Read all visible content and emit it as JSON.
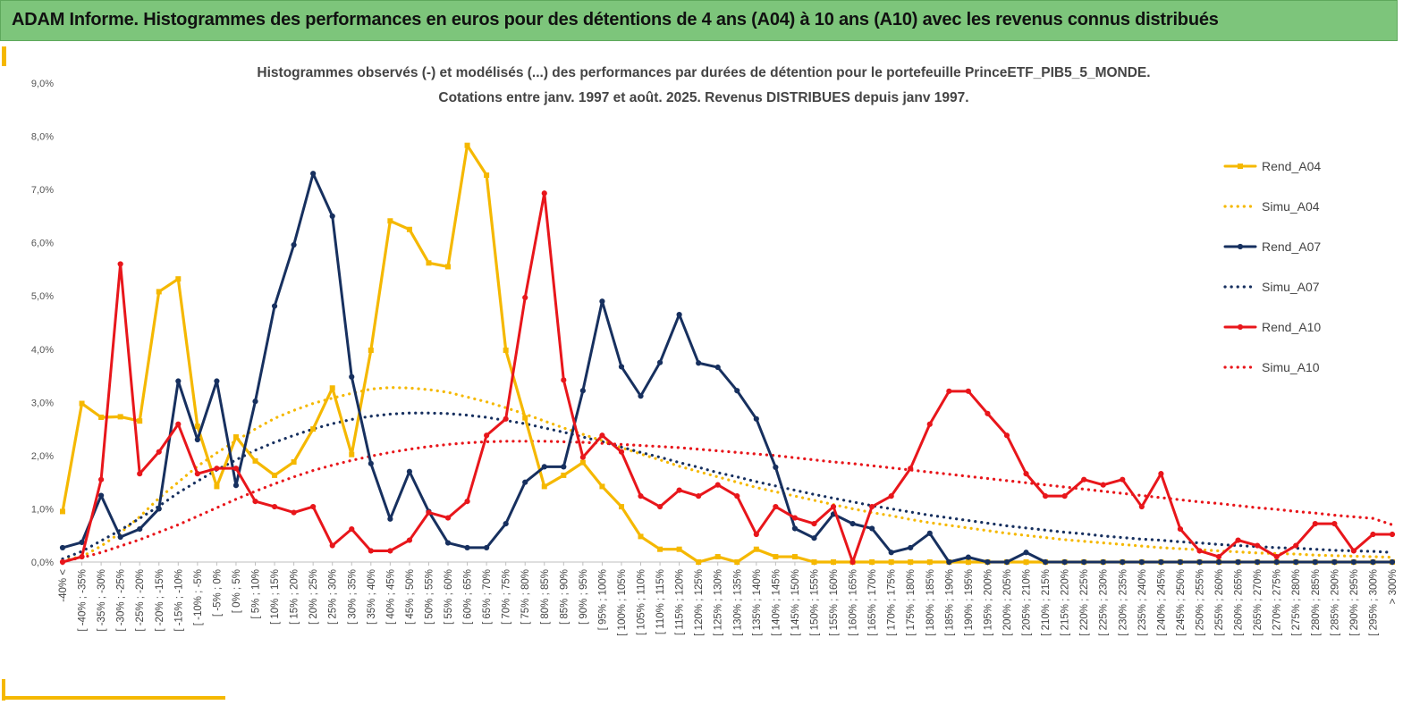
{
  "header": {
    "title": "ADAM Informe. Histogrammes des performances en euros pour des détentions de 4 ans (A04) à 10 ans (A10) avec les revenus connus distribués"
  },
  "colors": {
    "banner": "#7dc57b",
    "accent": "#f5b800",
    "a04": "#f5b800",
    "a07": "#17305f",
    "a10": "#e8161b"
  },
  "chart_data": {
    "type": "line",
    "title_line1": "Histogrammes observés (-) et modélisés (...) des performances par durées de détention pour le portefeuille PrinceETF_PIB5_5_MONDE.",
    "title_line2": "Cotations entre janv. 1997 et août. 2025. Revenus DISTRIBUES depuis janv 1997.",
    "ylim": [
      0,
      9
    ],
    "yticks": [
      "0,0%",
      "1,0%",
      "2,0%",
      "3,0%",
      "4,0%",
      "5,0%",
      "6,0%",
      "7,0%",
      "8,0%",
      "9,0%"
    ],
    "grid": false,
    "legend_position": "right",
    "categories": [
      "-40% <",
      "[ -40% ; -35%",
      "[ -35% ; -30%",
      "[ -30% ; -25%",
      "[ -25% ; -20%",
      "[ -20% ; -15%",
      "[ -15% ; -10%",
      "[ -10% ; -5%",
      "[ -5% ; 0%",
      "[ 0% ; 5%",
      "[ 5% ; 10%",
      "[ 10% ; 15%",
      "[ 15% ; 20%",
      "[ 20% ; 25%",
      "[ 25% ; 30%",
      "[ 30% ; 35%",
      "[ 35% ; 40%",
      "[ 40% ; 45%",
      "[ 45% ; 50%",
      "[ 50% ; 55%",
      "[ 55% ; 60%",
      "[ 60% ; 65%",
      "[ 65% ; 70%",
      "[ 70% ; 75%",
      "[ 75% ; 80%",
      "[ 80% ; 85%",
      "[ 85% ; 90%",
      "[ 90% ; 95%",
      "[ 95% ; 100%",
      "[ 100% ; 105%",
      "[ 105% ; 110%",
      "[ 110% ; 115%",
      "[ 115% ; 120%",
      "[ 120% ; 125%",
      "[ 125% ; 130%",
      "[ 130% ; 135%",
      "[ 135% ; 140%",
      "[ 140% ; 145%",
      "[ 145% ; 150%",
      "[ 150% ; 155%",
      "[ 155% ; 160%",
      "[ 160% ; 165%",
      "[ 165% ; 170%",
      "[ 170% ; 175%",
      "[ 175% ; 180%",
      "[ 180% ; 185%",
      "[ 185% ; 190%",
      "[ 190% ; 195%",
      "[ 195% ; 200%",
      "[ 200% ; 205%",
      "[ 205% ; 210%",
      "[ 210% ; 215%",
      "[ 215% ; 220%",
      "[ 220% ; 225%",
      "[ 225% ; 230%",
      "[ 230% ; 235%",
      "[ 235% ; 240%",
      "[ 240% ; 245%",
      "[ 245% ; 250%",
      "[ 250% ; 255%",
      "[ 255% ; 260%",
      "[ 260% ; 265%",
      "[ 265% ; 270%",
      "[ 270% ; 275%",
      "[ 275% ; 280%",
      "[ 280% ; 285%",
      "[ 285% ; 290%",
      "[ 290% ; 295%",
      "[ 295% ; 300%",
      "> 300%"
    ],
    "series": [
      {
        "name": "Rend_A04",
        "style": "solid",
        "color": "#f5b800",
        "values": [
          0.95,
          2.98,
          2.72,
          2.73,
          2.65,
          5.08,
          5.32,
          2.55,
          1.42,
          2.35,
          1.9,
          1.63,
          1.88,
          2.5,
          3.27,
          2.02,
          3.98,
          6.41,
          6.25,
          5.62,
          5.55,
          7.83,
          7.27,
          3.98,
          2.71,
          1.42,
          1.63,
          1.87,
          1.42,
          1.04,
          0.48,
          0.24,
          0.24,
          0.0,
          0.1,
          0.0,
          0.24,
          0.1,
          0.1,
          0.0,
          0.0,
          0.0,
          0.0,
          0.0,
          0.0,
          0.0,
          0.0,
          0.0,
          0.0,
          0.0,
          0.0,
          0.0,
          0.0,
          0.0,
          0.0,
          0.0,
          0.0,
          0.0,
          0.0,
          0.0,
          0.0,
          0.0,
          0.0,
          0.0,
          0.0,
          0.0,
          0.0,
          0.0,
          0.0,
          0.0
        ]
      },
      {
        "name": "Simu_A04",
        "style": "dotted",
        "color": "#f5b800",
        "values": [
          0.04,
          0.1,
          0.3,
          0.55,
          0.85,
          1.2,
          1.5,
          1.8,
          2.05,
          2.28,
          2.5,
          2.7,
          2.85,
          2.98,
          3.08,
          3.17,
          3.25,
          3.28,
          3.27,
          3.24,
          3.19,
          3.1,
          3.01,
          2.9,
          2.78,
          2.65,
          2.52,
          2.4,
          2.28,
          2.15,
          2.03,
          1.92,
          1.8,
          1.7,
          1.6,
          1.5,
          1.4,
          1.32,
          1.24,
          1.16,
          1.08,
          1.0,
          0.93,
          0.87,
          0.8,
          0.74,
          0.69,
          0.64,
          0.59,
          0.54,
          0.5,
          0.46,
          0.42,
          0.39,
          0.36,
          0.33,
          0.3,
          0.27,
          0.25,
          0.23,
          0.21,
          0.19,
          0.17,
          0.16,
          0.15,
          0.13,
          0.12,
          0.11,
          0.1,
          0.09
        ]
      },
      {
        "name": "Rend_A07",
        "style": "solid",
        "color": "#17305f",
        "values": [
          0.27,
          0.37,
          1.25,
          0.47,
          0.62,
          1.0,
          3.4,
          2.3,
          3.4,
          1.44,
          3.02,
          4.81,
          5.96,
          7.3,
          6.5,
          3.48,
          1.85,
          0.81,
          1.7,
          0.95,
          0.36,
          0.27,
          0.27,
          0.72,
          1.5,
          1.79,
          1.79,
          3.22,
          4.9,
          3.67,
          3.12,
          3.75,
          4.65,
          3.74,
          3.66,
          3.22,
          2.69,
          1.78,
          0.63,
          0.45,
          0.9,
          0.72,
          0.63,
          0.18,
          0.27,
          0.54,
          0.0,
          0.09,
          0.0,
          0.0,
          0.18,
          0.0,
          0.0,
          0.0,
          0.0,
          0.0,
          0.0,
          0.0,
          0.0,
          0.0,
          0.0,
          0.0,
          0.0,
          0.0,
          0.0,
          0.0,
          0.0,
          0.0,
          0.0,
          0.0
        ]
      },
      {
        "name": "Simu_A07",
        "style": "dotted",
        "color": "#17305f",
        "values": [
          0.06,
          0.2,
          0.4,
          0.6,
          0.82,
          1.05,
          1.3,
          1.52,
          1.73,
          1.92,
          2.1,
          2.25,
          2.38,
          2.5,
          2.6,
          2.68,
          2.74,
          2.78,
          2.8,
          2.8,
          2.79,
          2.76,
          2.72,
          2.66,
          2.6,
          2.52,
          2.44,
          2.35,
          2.26,
          2.16,
          2.06,
          1.97,
          1.87,
          1.78,
          1.68,
          1.6,
          1.51,
          1.43,
          1.35,
          1.27,
          1.2,
          1.13,
          1.06,
          1.0,
          0.94,
          0.88,
          0.83,
          0.78,
          0.73,
          0.68,
          0.64,
          0.6,
          0.56,
          0.53,
          0.49,
          0.46,
          0.43,
          0.41,
          0.38,
          0.36,
          0.33,
          0.31,
          0.29,
          0.27,
          0.26,
          0.24,
          0.22,
          0.21,
          0.2,
          0.18
        ]
      },
      {
        "name": "Rend_A10",
        "style": "solid",
        "color": "#e8161b",
        "values": [
          0.0,
          0.1,
          1.55,
          5.6,
          1.66,
          2.07,
          2.59,
          1.66,
          1.76,
          1.76,
          1.14,
          1.04,
          0.93,
          1.04,
          0.31,
          0.62,
          0.21,
          0.21,
          0.41,
          0.93,
          0.83,
          1.14,
          2.38,
          2.69,
          4.97,
          6.93,
          3.42,
          1.97,
          2.38,
          2.07,
          1.24,
          1.04,
          1.35,
          1.24,
          1.45,
          1.24,
          0.52,
          1.04,
          0.83,
          0.72,
          1.04,
          0.0,
          1.04,
          1.24,
          1.76,
          2.59,
          3.21,
          3.21,
          2.79,
          2.38,
          1.66,
          1.24,
          1.24,
          1.55,
          1.45,
          1.55,
          1.04,
          1.66,
          0.62,
          0.21,
          0.1,
          0.41,
          0.31,
          0.1,
          0.31,
          0.72,
          0.72,
          0.21,
          0.52,
          0.52
        ]
      },
      {
        "name": "Simu_A10",
        "style": "dotted",
        "color": "#e8161b",
        "values": [
          0.02,
          0.08,
          0.18,
          0.3,
          0.42,
          0.56,
          0.7,
          0.86,
          1.02,
          1.18,
          1.33,
          1.47,
          1.6,
          1.72,
          1.82,
          1.91,
          1.99,
          2.06,
          2.12,
          2.17,
          2.21,
          2.24,
          2.26,
          2.27,
          2.27,
          2.27,
          2.26,
          2.25,
          2.23,
          2.21,
          2.19,
          2.17,
          2.15,
          2.12,
          2.09,
          2.06,
          2.03,
          2.0,
          1.96,
          1.92,
          1.88,
          1.85,
          1.81,
          1.77,
          1.73,
          1.69,
          1.65,
          1.61,
          1.57,
          1.53,
          1.49,
          1.45,
          1.41,
          1.37,
          1.33,
          1.29,
          1.25,
          1.21,
          1.17,
          1.13,
          1.1,
          1.06,
          1.02,
          0.99,
          0.95,
          0.92,
          0.88,
          0.85,
          0.82,
          0.7
        ]
      }
    ]
  }
}
